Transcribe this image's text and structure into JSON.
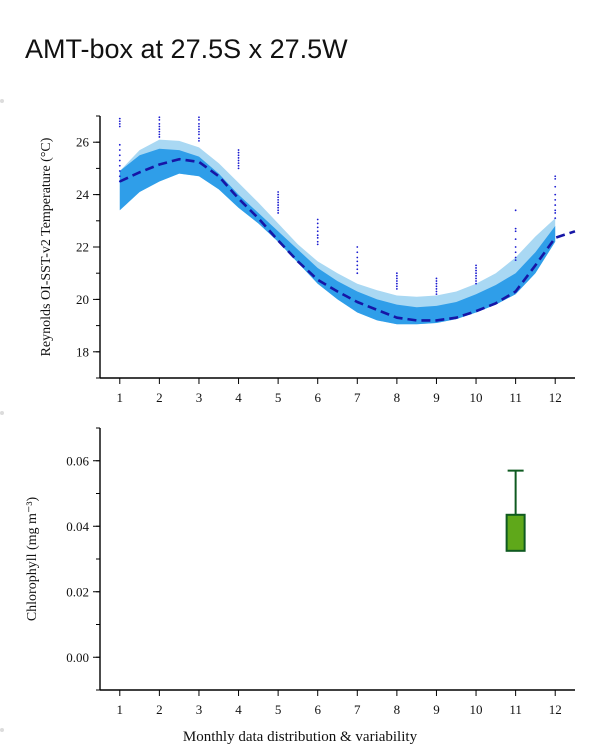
{
  "page": {
    "title": "AMT-box at 27.5S x 27.5W",
    "footer_caption": "Monthly data distribution & variability"
  },
  "colors": {
    "band_outer": "#a9d8f3",
    "band_inner": "#2f9ee9",
    "mean_line": "#1616a6",
    "points": "#1a1ad0",
    "box_fill": "#5fa81a",
    "box_edge": "#0f5a20",
    "axis": "#000000"
  },
  "chart_data": [
    {
      "type": "line",
      "xlabel": "",
      "ylabel": "Reynolds OI-SST-v2 Temperature (°C)",
      "xlim": [
        0.5,
        12.5
      ],
      "ylim": [
        17,
        27
      ],
      "x_ticks": [
        1,
        2,
        3,
        4,
        5,
        6,
        7,
        8,
        9,
        10,
        11,
        12
      ],
      "y_ticks": [
        18,
        20,
        22,
        24,
        26
      ],
      "grid": false,
      "x": [
        1,
        1.5,
        2,
        2.5,
        3,
        3.5,
        4,
        4.5,
        5,
        5.5,
        6,
        6.5,
        7,
        7.5,
        8,
        8.5,
        9,
        9.5,
        10,
        10.5,
        11,
        11.5,
        12,
        12.5
      ],
      "series": [
        {
          "role": "outer_upper",
          "values": [
            24.9,
            25.7,
            26.1,
            26.05,
            25.8,
            25.2,
            24.45,
            23.7,
            22.9,
            22.1,
            21.45,
            21.0,
            20.6,
            20.35,
            20.15,
            20.1,
            20.15,
            20.3,
            20.6,
            21.0,
            21.6,
            22.4,
            23.1,
            null
          ]
        },
        {
          "role": "outer_lower",
          "values": [
            23.4,
            24.1,
            24.5,
            24.8,
            24.7,
            24.2,
            23.5,
            22.9,
            22.2,
            21.4,
            20.6,
            20.0,
            19.5,
            19.2,
            19.05,
            19.05,
            19.1,
            19.25,
            19.5,
            19.8,
            20.2,
            21.0,
            22.2,
            null
          ]
        },
        {
          "role": "inner_upper",
          "values": [
            24.9,
            25.5,
            25.75,
            25.7,
            25.45,
            24.8,
            24.0,
            23.3,
            22.6,
            21.9,
            21.2,
            20.7,
            20.3,
            20.0,
            19.8,
            19.7,
            19.75,
            19.9,
            20.2,
            20.55,
            21.0,
            21.8,
            22.8,
            null
          ]
        },
        {
          "role": "inner_lower",
          "values": [
            23.4,
            24.1,
            24.5,
            24.8,
            24.7,
            24.2,
            23.5,
            22.9,
            22.2,
            21.4,
            20.6,
            20.0,
            19.5,
            19.2,
            19.05,
            19.05,
            19.1,
            19.25,
            19.5,
            19.8,
            20.2,
            21.0,
            22.2,
            null
          ]
        },
        {
          "role": "mean",
          "values": [
            24.5,
            24.85,
            25.15,
            25.35,
            25.25,
            24.7,
            23.85,
            23.1,
            22.25,
            21.45,
            20.75,
            20.3,
            19.9,
            19.6,
            19.3,
            19.2,
            19.2,
            19.3,
            19.55,
            19.85,
            20.3,
            21.3,
            22.35,
            22.6
          ]
        }
      ],
      "points": [
        {
          "month": 1,
          "values": [
            26.9,
            26.8,
            26.7,
            26.6,
            25.9,
            25.7,
            25.5,
            25.3,
            25.1,
            24.9,
            24.7,
            24.5
          ]
        },
        {
          "month": 2,
          "values": [
            26.95,
            26.85,
            26.7,
            26.6,
            26.5,
            26.4,
            26.3,
            26.2
          ]
        },
        {
          "month": 3,
          "values": [
            26.95,
            26.85,
            26.7,
            26.6,
            26.5,
            26.4,
            26.3,
            26.15,
            26.05
          ]
        },
        {
          "month": 4,
          "values": [
            25.7,
            25.6,
            25.5,
            25.4,
            25.3,
            25.2,
            25.1,
            25.0
          ]
        },
        {
          "month": 5,
          "values": [
            24.1,
            24.0,
            23.9,
            23.8,
            23.7,
            23.6,
            23.5,
            23.4,
            23.3
          ]
        },
        {
          "month": 6,
          "values": [
            23.05,
            22.9,
            22.75,
            22.6,
            22.45,
            22.35,
            22.2,
            22.1
          ]
        },
        {
          "month": 7,
          "values": [
            22.0,
            21.8,
            21.6,
            21.45,
            21.3,
            21.15,
            21.0
          ]
        },
        {
          "month": 8,
          "values": [
            21.0,
            20.9,
            20.8,
            20.7,
            20.6,
            20.5,
            20.4
          ]
        },
        {
          "month": 9,
          "values": [
            20.8,
            20.7,
            20.6,
            20.5,
            20.4,
            20.3,
            20.2
          ]
        },
        {
          "month": 10,
          "values": [
            21.3,
            21.2,
            21.1,
            21.0,
            20.9,
            20.8,
            20.7,
            20.6
          ]
        },
        {
          "month": 11,
          "values": [
            23.4,
            22.7,
            22.6,
            22.3,
            22.0,
            21.8,
            21.6,
            21.5
          ]
        },
        {
          "month": 12,
          "values": [
            24.7,
            24.6,
            24.3,
            24.0,
            23.8,
            23.6,
            23.4,
            23.3,
            23.1
          ]
        }
      ]
    },
    {
      "type": "box",
      "xlabel": "",
      "ylabel": "Chlorophyll (mg m⁻³)",
      "xlim": [
        0.5,
        12.5
      ],
      "ylim": [
        -0.01,
        0.07
      ],
      "x_ticks": [
        1,
        2,
        3,
        4,
        5,
        6,
        7,
        8,
        9,
        10,
        11,
        12
      ],
      "y_ticks": [
        0.0,
        0.02,
        0.04,
        0.06
      ],
      "y_tick_labels": [
        "0.00",
        "0.02",
        "0.04",
        "0.06"
      ],
      "grid": false,
      "boxes": [
        {
          "month": 11,
          "q1": 0.0325,
          "q3": 0.0435,
          "whisker_high": 0.057,
          "whisker_low": 0.0325
        }
      ]
    }
  ]
}
